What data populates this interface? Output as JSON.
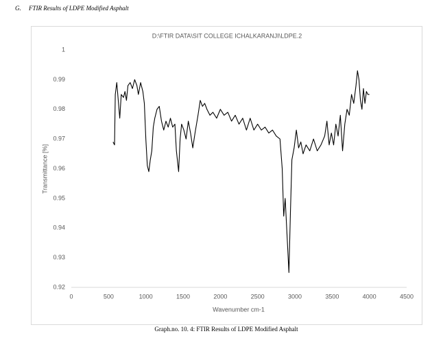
{
  "heading": {
    "label": "G.",
    "text": "FTIR Results of LDPE Modified Asphalt"
  },
  "caption": "Graph.no. 10. 4: FTIR Results of LDPE Modified Asphalt",
  "chart_data": {
    "type": "line",
    "title": "D:\\FTIR DATA\\SIT COLLEGE ICHALKARANJI\\LDPE.2",
    "x_label": "Wavenumber cm-1",
    "y_label": "Transmittance [%]",
    "x": [
      560,
      580,
      590,
      610,
      630,
      650,
      670,
      700,
      720,
      740,
      760,
      790,
      820,
      850,
      880,
      900,
      930,
      960,
      980,
      1000,
      1020,
      1040,
      1060,
      1080,
      1100,
      1120,
      1150,
      1180,
      1210,
      1240,
      1270,
      1300,
      1330,
      1360,
      1390,
      1410,
      1440,
      1460,
      1480,
      1510,
      1540,
      1570,
      1600,
      1630,
      1660,
      1700,
      1730,
      1760,
      1790,
      1820,
      1860,
      1900,
      1950,
      2000,
      2050,
      2100,
      2150,
      2200,
      2250,
      2300,
      2350,
      2400,
      2450,
      2500,
      2550,
      2600,
      2650,
      2700,
      2750,
      2800,
      2830,
      2850,
      2870,
      2890,
      2920,
      2940,
      2960,
      2990,
      3020,
      3050,
      3080,
      3110,
      3150,
      3200,
      3250,
      3300,
      3350,
      3400,
      3430,
      3460,
      3490,
      3520,
      3550,
      3580,
      3610,
      3640,
      3670,
      3700,
      3730,
      3760,
      3790,
      3820,
      3840,
      3860,
      3880,
      3900,
      3920,
      3940,
      3960,
      3980,
      4000
    ],
    "series": [
      {
        "color": "#000000",
        "values": [
          0.969,
          0.968,
          0.985,
          0.989,
          0.983,
          0.977,
          0.985,
          0.984,
          0.986,
          0.983,
          0.988,
          0.989,
          0.987,
          0.99,
          0.988,
          0.985,
          0.989,
          0.986,
          0.982,
          0.97,
          0.961,
          0.959,
          0.963,
          0.966,
          0.974,
          0.977,
          0.98,
          0.981,
          0.976,
          0.973,
          0.976,
          0.974,
          0.977,
          0.974,
          0.975,
          0.966,
          0.959,
          0.97,
          0.975,
          0.973,
          0.97,
          0.976,
          0.972,
          0.967,
          0.972,
          0.978,
          0.983,
          0.981,
          0.982,
          0.98,
          0.978,
          0.979,
          0.977,
          0.98,
          0.978,
          0.979,
          0.976,
          0.978,
          0.975,
          0.977,
          0.973,
          0.977,
          0.973,
          0.975,
          0.973,
          0.974,
          0.972,
          0.973,
          0.971,
          0.97,
          0.96,
          0.944,
          0.95,
          0.94,
          0.925,
          0.945,
          0.963,
          0.967,
          0.973,
          0.967,
          0.969,
          0.965,
          0.968,
          0.966,
          0.97,
          0.966,
          0.968,
          0.971,
          0.976,
          0.968,
          0.972,
          0.968,
          0.975,
          0.971,
          0.978,
          0.966,
          0.975,
          0.98,
          0.978,
          0.985,
          0.982,
          0.988,
          0.993,
          0.99,
          0.983,
          0.98,
          0.987,
          0.982,
          0.986,
          0.985,
          0.985
        ]
      }
    ],
    "xlim": [
      0,
      4500
    ],
    "xticks": [
      0,
      500,
      1000,
      1500,
      2000,
      2500,
      3000,
      3500,
      4000,
      4500
    ],
    "ylim": [
      0.92,
      1
    ],
    "yticks": [
      0.92,
      0.93,
      0.94,
      0.95,
      0.96,
      0.97,
      0.98,
      0.99,
      1
    ],
    "grid": false
  }
}
